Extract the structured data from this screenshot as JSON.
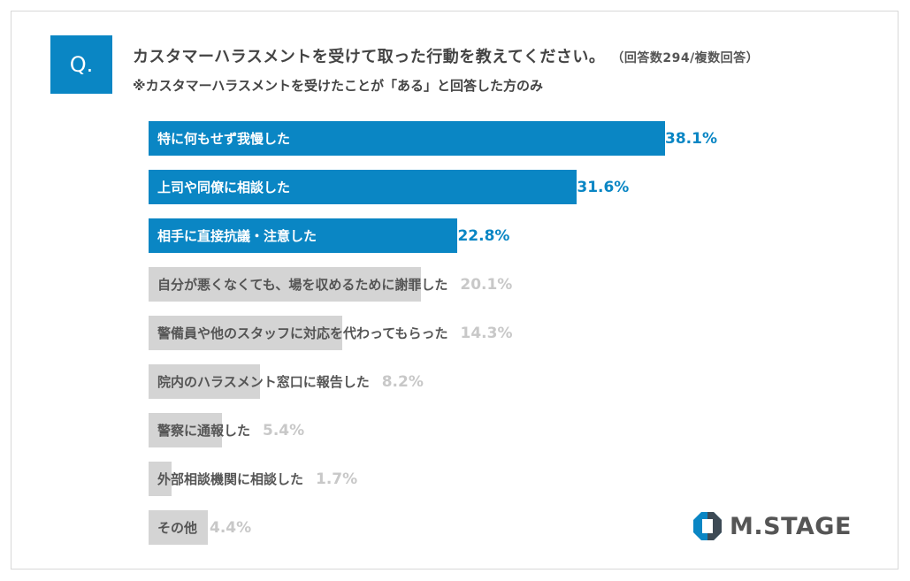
{
  "question_marker": "Q.",
  "title": "カスタマーハラスメントを受けて取った行動を教えてください。",
  "note": "（回答数294/複数回答）",
  "subtitle": "※カスタマーハラスメントを受けたことが「ある」と回答した方のみ",
  "logo_text": "M.STAGE",
  "colors": {
    "highlight": "#0a86c4",
    "muted_bar": "#d4d4d4",
    "muted_value": "#c8c8c8",
    "label_dark": "#555555"
  },
  "chart_data": {
    "type": "bar",
    "orientation": "horizontal",
    "unit": "%",
    "categories": [
      "特に何もせず我慢した",
      "上司や同僚に相談した",
      "相手に直接抗議・注意した",
      "自分が悪くなくても、場を収めるために謝罪した",
      "警備員や他のスタッフに対応を代わってもらった",
      "院内のハラスメント窓口に報告した",
      "警察に通報した",
      "外部相談機関に相談した",
      "その他"
    ],
    "values": [
      38.1,
      31.6,
      22.8,
      20.1,
      14.3,
      8.2,
      5.4,
      1.7,
      4.4
    ],
    "value_labels": [
      "38.1%",
      "31.6%",
      "22.8%",
      "20.1%",
      "14.3%",
      "8.2%",
      "5.4%",
      "1.7%",
      "4.4%"
    ],
    "highlighted": [
      true,
      true,
      true,
      false,
      false,
      false,
      false,
      false,
      false
    ],
    "grid": false,
    "axes_visible": false
  }
}
